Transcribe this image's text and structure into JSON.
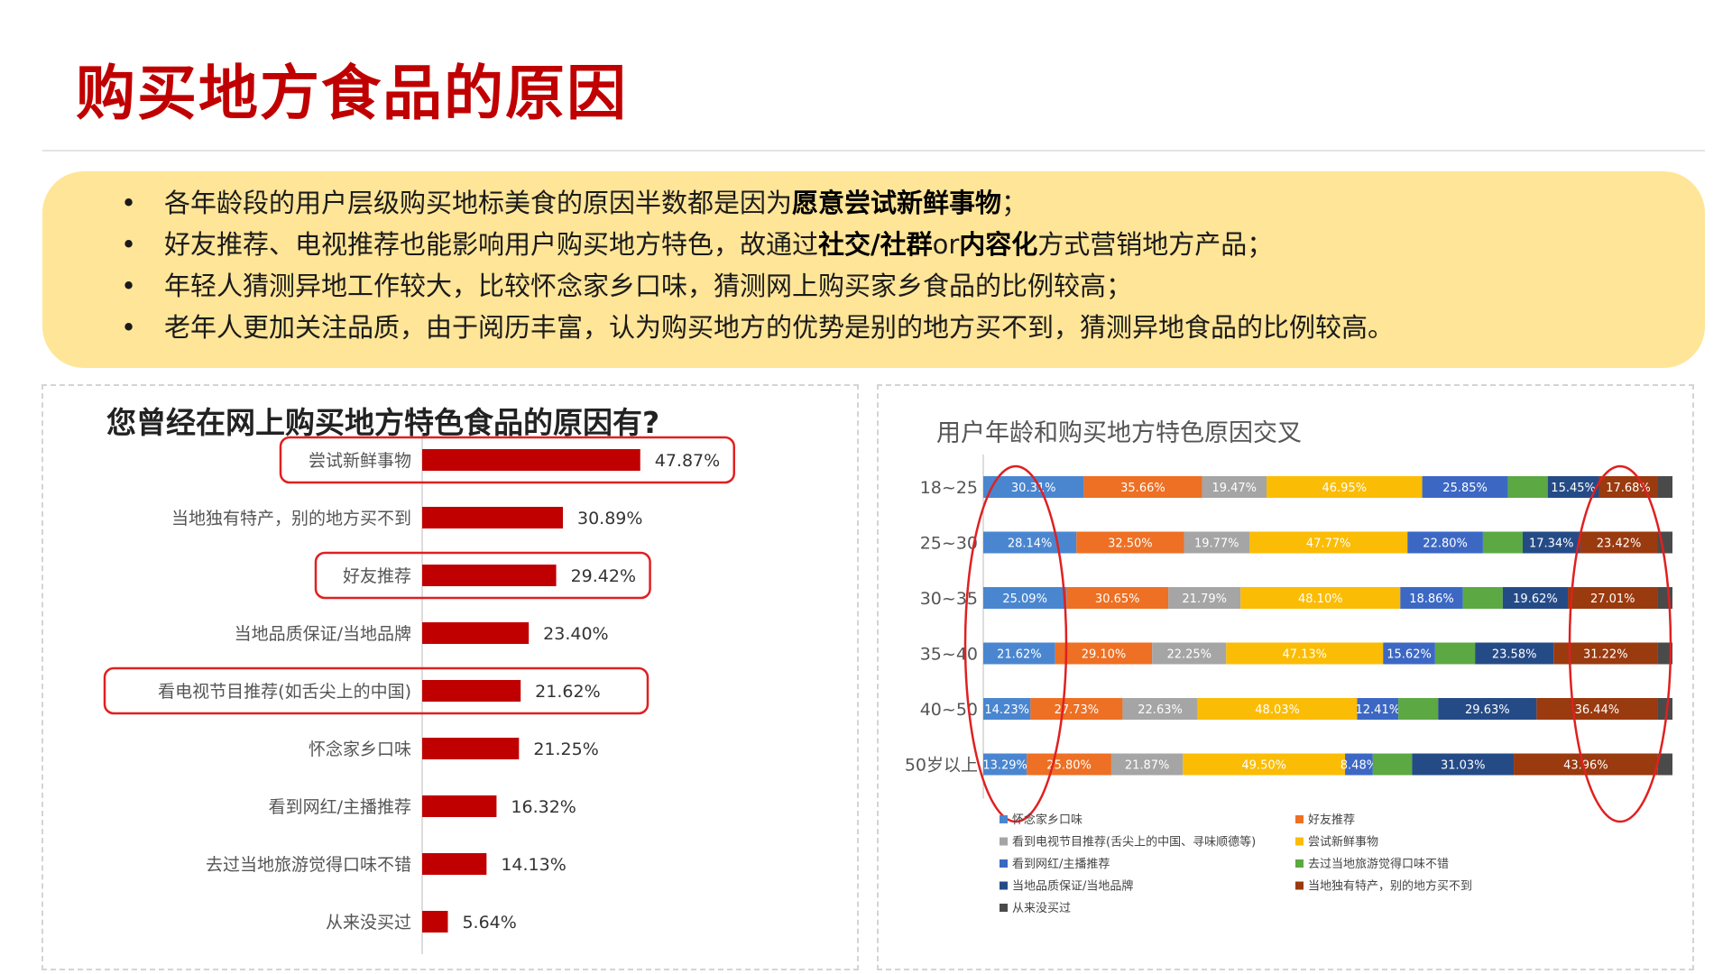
{
  "page": {
    "title": "购买地方食品的原因",
    "bullets": [
      {
        "parts": [
          {
            "t": "各年龄段的用户层级购买地标美食的原因半数都是因为",
            "b": false
          },
          {
            "t": "愿意尝试新鲜事物",
            "b": true
          },
          {
            "t": "；",
            "b": false
          }
        ]
      },
      {
        "parts": [
          {
            "t": "好友推荐、电视推荐也能影响用户购买地方特色，故通过",
            "b": false
          },
          {
            "t": "社交/社群",
            "b": true
          },
          {
            "t": "or",
            "b": false
          },
          {
            "t": "内容化",
            "b": true
          },
          {
            "t": "方式营销地方产品；",
            "b": false
          }
        ]
      },
      {
        "parts": [
          {
            "t": "年轻人猜测异地工作较大，比较怀念家乡口味，猜测网上购买家乡食品的比例较高；",
            "b": false
          }
        ]
      },
      {
        "parts": [
          {
            "t": "老年人更加关注品质，由于阅历丰富，认为购买地方的优势是别的地方买不到，猜测异地食品的比例较高。",
            "b": false
          }
        ]
      }
    ]
  },
  "colors": {
    "title": "#c00000",
    "summary_bg": "#ffe597",
    "bar": "#c00000",
    "highlight": "#e02020"
  },
  "chart_data": [
    {
      "type": "bar",
      "orientation": "horizontal",
      "title": "您曾经在网上购买地方特色食品的原因有?",
      "categories": [
        "尝试新鲜事物",
        "当地独有特产，别的地方买不到",
        "好友推荐",
        "当地品质保证/当地品牌",
        "看电视节目推荐(如舌尖上的中国)",
        "怀念家乡口味",
        "看到网红/主播推荐",
        "去过当地旅游觉得口味不错",
        "从来没买过"
      ],
      "values": [
        47.87,
        30.89,
        29.42,
        23.4,
        21.62,
        21.25,
        16.32,
        14.13,
        5.64
      ],
      "labels": [
        "47.87%",
        "30.89%",
        "29.42%",
        "23.40%",
        "21.62%",
        "21.25%",
        "16.32%",
        "14.13%",
        "5.64%"
      ],
      "highlighted_categories": [
        "尝试新鲜事物",
        "好友推荐",
        "看电视节目推荐(如舌尖上的中国)"
      ],
      "color": "#c00000"
    },
    {
      "type": "bar",
      "stacked": true,
      "orientation": "horizontal",
      "title": "用户年龄和购买地方特色原因交叉",
      "categories": [
        "18~25",
        "25~30",
        "30~35",
        "35~40",
        "40~50",
        "50岁以上"
      ],
      "series": [
        {
          "name": "怀念家乡口味",
          "color": "#4a86d0",
          "values": [
            30.31,
            28.14,
            25.09,
            21.62,
            14.23,
            13.29
          ],
          "labels": [
            "30.31%",
            "28.14%",
            "25.09%",
            "21.62%",
            "14.23%",
            "13.29%"
          ]
        },
        {
          "name": "好友推荐",
          "color": "#ed7024",
          "values": [
            35.66,
            32.5,
            30.65,
            29.1,
            27.73,
            25.8
          ],
          "labels": [
            "35.66%",
            "32.50%",
            "30.65%",
            "29.10%",
            "27.73%",
            "25.80%"
          ]
        },
        {
          "name": "看到电视节目推荐(舌尖上的中国、寻味顺德等)",
          "color": "#a5a5a5",
          "values": [
            19.47,
            19.77,
            21.79,
            22.25,
            22.63,
            21.87
          ],
          "labels": [
            "19.47%",
            "19.77%",
            "21.79%",
            "22.25%",
            "22.63%",
            "21.87%"
          ]
        },
        {
          "name": "尝试新鲜事物",
          "color": "#fbbc06",
          "values": [
            46.95,
            47.77,
            48.1,
            47.13,
            48.03,
            49.5
          ],
          "labels": [
            "46.95%",
            "47.77%",
            "48.10%",
            "47.13%",
            "48.03%",
            "49.50%"
          ]
        },
        {
          "name": "看到网红/主播推荐",
          "color": "#3c68c4",
          "values": [
            25.85,
            22.8,
            18.86,
            15.62,
            12.41,
            8.48
          ],
          "labels": [
            "25.85%",
            "22.80%",
            "18.86%",
            "15.62%",
            "12.41%",
            "8.48%"
          ]
        },
        {
          "name": "去过当地旅游觉得口味不错",
          "color": "#5ca843",
          "values": [
            12.0,
            12.0,
            12.0,
            12.0,
            12.0,
            12.0
          ],
          "labels": [
            "",
            "",
            "",
            "",
            "",
            ""
          ]
        },
        {
          "name": "当地品质保证/当地品牌",
          "color": "#254b87",
          "values": [
            15.45,
            17.34,
            19.62,
            23.58,
            29.63,
            31.03
          ],
          "labels": [
            "15.45%",
            "17.34%",
            "19.62%",
            "23.58%",
            "29.63%",
            "31.03%"
          ]
        },
        {
          "name": "当地独有特产，别的地方买不到",
          "color": "#9a3a0f",
          "values": [
            17.68,
            23.42,
            27.01,
            31.22,
            36.44,
            43.96
          ],
          "labels": [
            "17.68%",
            "23.42%",
            "27.01%",
            "31.22%",
            "36.44%",
            "43.96%"
          ]
        },
        {
          "name": "从来没买过",
          "color": "#4a4a4a",
          "values": [
            4.5,
            4.5,
            4.5,
            4.5,
            4.5,
            4.5
          ],
          "labels": [
            "",
            "",
            "",
            "",
            "",
            ""
          ]
        }
      ],
      "legend_position": "bottom",
      "highlighted_series": [
        "怀念家乡口味",
        "当地独有特产，别的地方买不到"
      ]
    }
  ]
}
